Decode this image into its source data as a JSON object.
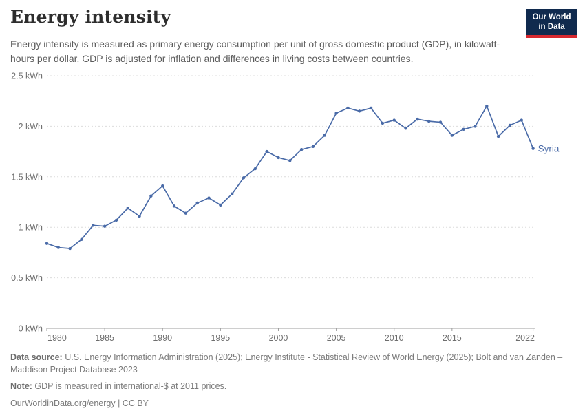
{
  "header": {
    "title": "Energy intensity",
    "subtitle": "Energy intensity is measured as primary energy consumption per unit of gross domestic product (GDP), in kilowatt-hours per dollar. GDP is adjusted for inflation and differences in living costs between countries.",
    "logo": {
      "line1": "Our World",
      "line2": "in Data"
    }
  },
  "chart_data": {
    "type": "line",
    "title": "Energy intensity",
    "xlabel": "",
    "ylabel": "kilowatt-hours per dollar",
    "xlim": [
      1980,
      2022
    ],
    "ylim": [
      0,
      2.5
    ],
    "grid": "horizontal-dashed",
    "legend_position": "end-of-line",
    "x": [
      1980,
      1981,
      1982,
      1983,
      1984,
      1985,
      1986,
      1987,
      1988,
      1989,
      1990,
      1991,
      1992,
      1993,
      1994,
      1995,
      1996,
      1997,
      1998,
      1999,
      2000,
      2001,
      2002,
      2003,
      2004,
      2005,
      2006,
      2007,
      2008,
      2009,
      2010,
      2011,
      2012,
      2013,
      2014,
      2015,
      2016,
      2017,
      2018,
      2019,
      2020,
      2021,
      2022
    ],
    "series": [
      {
        "name": "Syria",
        "color": "#4a6ba8",
        "values": [
          0.84,
          0.8,
          0.79,
          0.88,
          1.02,
          1.01,
          1.07,
          1.19,
          1.11,
          1.31,
          1.41,
          1.21,
          1.14,
          1.24,
          1.29,
          1.22,
          1.33,
          1.49,
          1.58,
          1.75,
          1.69,
          1.66,
          1.77,
          1.8,
          1.91,
          2.13,
          2.18,
          2.15,
          2.18,
          2.03,
          2.06,
          1.98,
          2.07,
          2.05,
          2.04,
          1.91,
          1.97,
          2.0,
          2.2,
          1.9,
          2.01,
          2.06,
          1.78
        ]
      }
    ],
    "xticks": [
      1980,
      1985,
      1990,
      1995,
      2000,
      2005,
      2010,
      2015,
      2022
    ],
    "yticks": [
      {
        "value": 0,
        "label": "0 kWh"
      },
      {
        "value": 0.5,
        "label": "0.5 kWh"
      },
      {
        "value": 1,
        "label": "1 kWh"
      },
      {
        "value": 1.5,
        "label": "1.5 kWh"
      },
      {
        "value": 2,
        "label": "2 kWh"
      },
      {
        "value": 2.5,
        "label": "2.5 kWh"
      }
    ]
  },
  "footer": {
    "datasource_label": "Data source:",
    "datasource_text": " U.S. Energy Information Administration (2025); Energy Institute - Statistical Review of World Energy (2025); Bolt and van Zanden – Maddison Project Database 2023",
    "note_label": "Note:",
    "note_text": " GDP is measured in international-$ at 2011 prices.",
    "link": "OurWorldinData.org/energy | CC BY"
  },
  "colors": {
    "line": "#4a6ba8",
    "grid": "#dcdcdc",
    "axis": "#9e9e9e",
    "tick_label": "#6e6e6e",
    "logo_bg": "#102a4e",
    "logo_accent": "#d7282f"
  }
}
